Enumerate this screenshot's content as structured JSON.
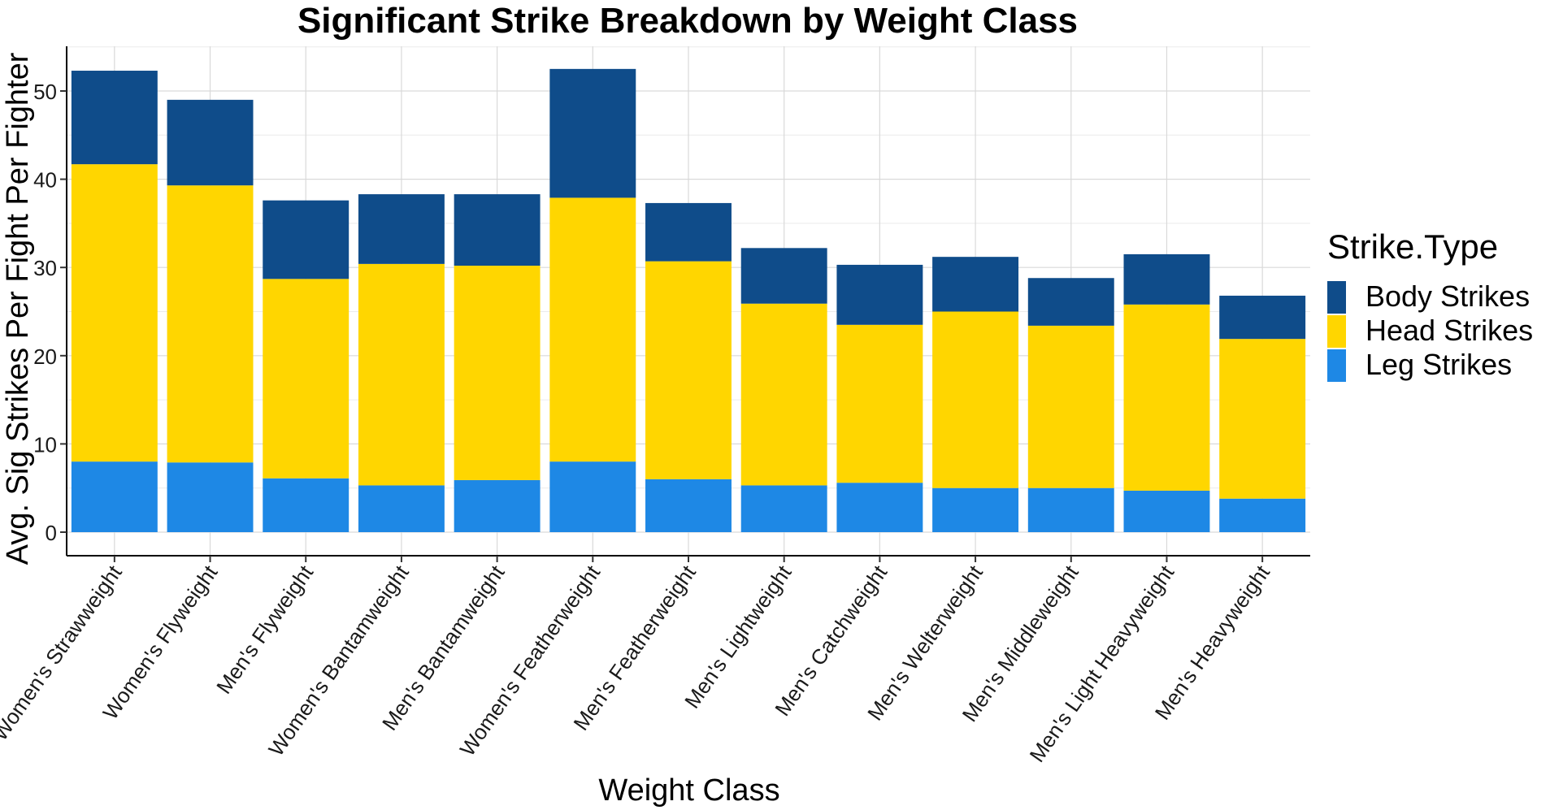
{
  "chart_data": {
    "type": "bar",
    "stacked": true,
    "title": "Significant Strike Breakdown by Weight Class",
    "xlabel": "Weight Class",
    "ylabel": "Avg. Sig Strikes Per Fight Per Fighter",
    "ylim": [
      0,
      55
    ],
    "yticks": [
      0,
      10,
      20,
      30,
      40,
      50
    ],
    "grid": true,
    "legend": {
      "title": "Strike.Type",
      "position": "right"
    },
    "categories": [
      "Women's Strawweight",
      "Women's Flyweight",
      "Men's Flyweight",
      "Women's Bantamweight",
      "Men's Bantamweight",
      "Women's Featherweight",
      "Men's Featherweight",
      "Men's Lightweight",
      "Men's Catchweight",
      "Men's Welterweight",
      "Men's Middleweight",
      "Men's Light Heavyweight",
      "Men's Heavyweight"
    ],
    "series": [
      {
        "name": "Leg Strikes",
        "color": "#1E88E5",
        "values": [
          8.0,
          7.9,
          6.1,
          5.3,
          5.9,
          8.0,
          6.0,
          5.3,
          5.6,
          5.0,
          5.0,
          4.7,
          3.8
        ]
      },
      {
        "name": "Head Strikes",
        "color": "#FFD600",
        "values": [
          33.7,
          31.4,
          22.6,
          25.1,
          24.3,
          29.9,
          24.7,
          20.6,
          17.9,
          20.0,
          18.4,
          21.1,
          18.1
        ]
      },
      {
        "name": "Body Strikes",
        "color": "#0F4C8A",
        "values": [
          10.6,
          9.7,
          8.9,
          7.9,
          8.1,
          14.6,
          6.6,
          6.3,
          6.8,
          6.2,
          5.4,
          5.7,
          4.9
        ]
      }
    ],
    "legend_order": [
      "Body Strikes",
      "Head Strikes",
      "Leg Strikes"
    ]
  }
}
